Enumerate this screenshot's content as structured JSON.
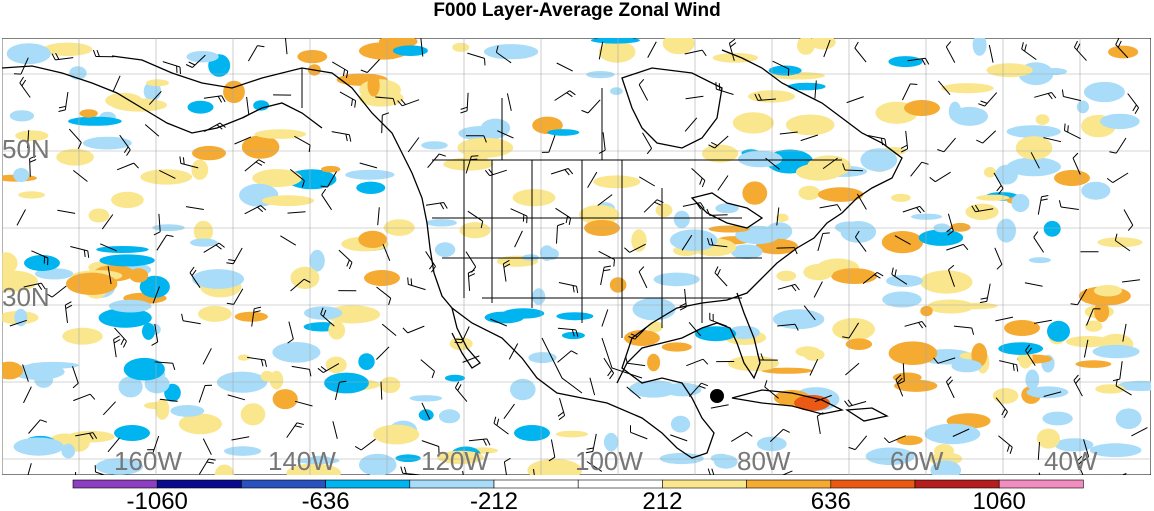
{
  "title": "F000 Layer-Average Zonal Wind",
  "map": {
    "lat_labels": [
      "50N",
      "30N"
    ],
    "lon_labels": [
      "160W",
      "140W",
      "120W",
      "100W",
      "80W",
      "60W",
      "40W"
    ],
    "marker": "storm-center-dot"
  },
  "colorbar": {
    "tick_labels": [
      "-1060",
      "-636",
      "-212",
      "212",
      "636",
      "1060"
    ],
    "colors": [
      "#8c3fc0",
      "#0a0a8c",
      "#2a52be",
      "#00b4f0",
      "#a8dcf8",
      "#ffffff",
      "#ffffff",
      "#fae68c",
      "#f5aa32",
      "#eb5a14",
      "#b41e1e",
      "#f08cbe"
    ]
  }
}
